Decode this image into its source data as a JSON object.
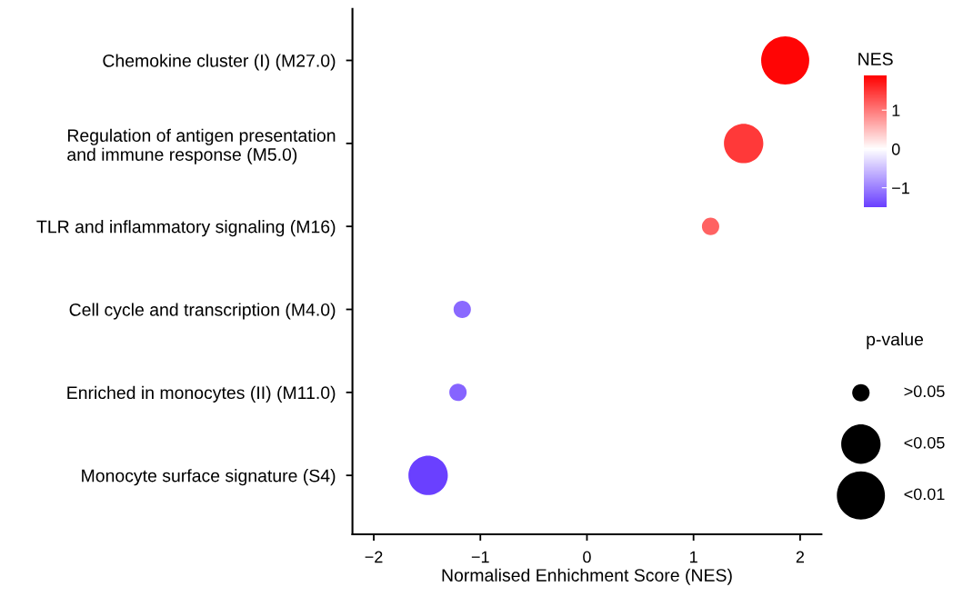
{
  "chart_data": {
    "type": "bubble",
    "orientation": "horizontal",
    "categories": [
      "Chemokine cluster (I) (M27.0)",
      "Regulation of antigen presentation\nand immune response (M5.0)",
      "TLR and inflammatory signaling (M16)",
      "Cell cycle and transcription (M4.0)",
      "Enriched in monocytes (II) (M11.0)",
      "Monocyte surface signature (S4)"
    ],
    "values": [
      1.86,
      1.47,
      1.16,
      -1.17,
      -1.21,
      -1.49
    ],
    "cvalues": [
      1.86,
      1.47,
      1.16,
      -1.17,
      -1.21,
      -1.49
    ],
    "sizes": [
      1,
      0.67,
      0.13,
      0.13,
      0.13,
      0.67
    ],
    "size_legend": [
      {
        "value": 0.13,
        "label": ">0.05"
      },
      {
        "value": 0.67,
        "label": "<0.05"
      },
      {
        "value": 1,
        "label": "<0.01"
      }
    ],
    "legend_title": "p-value",
    "clabel": "NES",
    "clim": [
      -1.5,
      1.9
    ],
    "cticks": [
      -1,
      0,
      1
    ],
    "xlabel": "Normalised Enhichment Score (NES)",
    "xlim": [
      -2.2,
      2.2
    ],
    "xticks": [
      -2,
      -1,
      0,
      1,
      2
    ],
    "grid": false
  }
}
